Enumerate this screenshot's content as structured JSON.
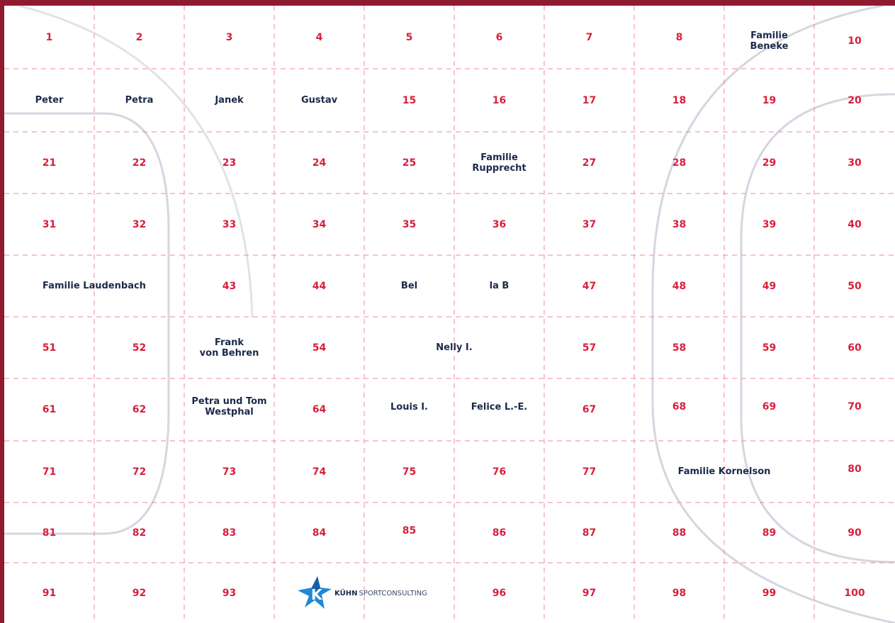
{
  "colors": {
    "page_border": "#8e1b30",
    "number": "#d81f3c",
    "name": "#1a2a4a",
    "grid": "#ee8a9c",
    "court_line": "#d6d6e2"
  },
  "cells": {
    "1": "1",
    "2": "2",
    "3": "3",
    "4": "4",
    "5": "5",
    "6": "6",
    "7": "7",
    "8": "8",
    "10": "10",
    "15": "15",
    "16": "16",
    "17": "17",
    "18": "18",
    "19": "19",
    "20": "20",
    "21": "21",
    "22": "22",
    "23": "23",
    "24": "24",
    "25": "25",
    "27": "27",
    "28": "28",
    "29": "29",
    "30": "30",
    "31": "31",
    "32": "32",
    "33": "33",
    "34": "34",
    "35": "35",
    "36": "36",
    "37": "37",
    "38": "38",
    "39": "39",
    "40": "40",
    "43": "43",
    "44": "44",
    "47": "47",
    "48": "48",
    "49": "49",
    "50": "50",
    "51": "51",
    "52": "52",
    "54": "54",
    "57": "57",
    "58": "58",
    "59": "59",
    "60": "60",
    "61": "61",
    "62": "62",
    "64": "64",
    "67": "67",
    "68": "68",
    "69": "69",
    "70": "70",
    "71": "71",
    "72": "72",
    "73": "73",
    "74": "74",
    "75": "75",
    "76": "76",
    "77": "77",
    "80": "80",
    "81": "81",
    "82": "82",
    "83": "83",
    "84": "84",
    "85": "85",
    "86": "86",
    "87": "87",
    "88": "88",
    "89": "89",
    "90": "90",
    "91": "91",
    "92": "92",
    "93": "93",
    "96": "96",
    "97": "97",
    "98": "98",
    "99": "99",
    "100": "100"
  },
  "names": {
    "peter": "Peter",
    "petra": "Petra",
    "janek": "Janek",
    "gustav": "Gustav",
    "beneke": "Familie\nBeneke",
    "rupprecht": "Familie\nRupprecht",
    "laudenbach": "Familie Laudenbach",
    "bel": "Bel",
    "la_b": "la B",
    "frank": "Frank\nvon Behren",
    "nelly": "Nelly I.",
    "westphal": "Petra und Tom\nWestphal",
    "louis": "Louis I.",
    "felice": "Felice L.-E.",
    "kornelson": "Familie Kornelson"
  },
  "logo": {
    "brand_bold": "KÜHN",
    "brand_light": " SPORTCONSULTING",
    "icon": "star-k-icon"
  }
}
